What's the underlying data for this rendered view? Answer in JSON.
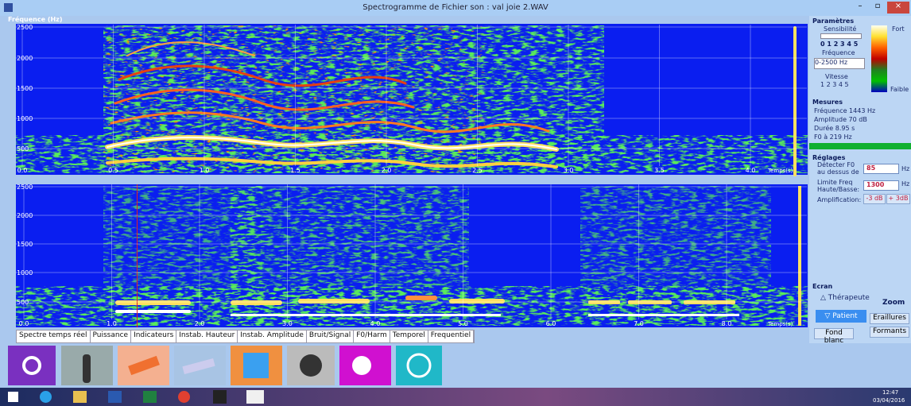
{
  "window": {
    "title": "Spectrogramme de Fichier son : val joie 2.WAV"
  },
  "top_spectrogram": {
    "y_label": "Fréquence (Hz)",
    "y_ticks": [
      "2500",
      "2000",
      "1500",
      "1000",
      "500"
    ],
    "x_ticks": [
      "0.0",
      "0.5",
      "1.0",
      "1.5",
      "2.0",
      "2.5",
      "3.0",
      "3.5",
      "4.0"
    ],
    "x_label": "Temps(s)"
  },
  "bottom_spectrogram": {
    "y_ticks": [
      "2500",
      "2000",
      "1500",
      "1000",
      "500"
    ],
    "x_ticks": [
      "0.0",
      "1.0",
      "2.0",
      "3.0",
      "4.0",
      "5.0",
      "6.0",
      "7.0",
      "8.0"
    ],
    "x_label": "Temps(s)"
  },
  "tabs": [
    "Spectre temps réel",
    "Puissance",
    "Indicateurs",
    "Instab. Hauteur",
    "Instab. Amplitude",
    "Bruit/Signal",
    "F0/Harm",
    "Temporel",
    "Frequentiel"
  ],
  "panel": {
    "parametres": {
      "title": "Paramètres",
      "sensibilite": "Sensibilité",
      "sensibilite_scale": "0 1 2 3 4 5",
      "frequence": "Fréquence",
      "frequence_select": "0-2500 Hz",
      "vitesse": "Vitesse",
      "vitesse_scale": "1 2 3 4 5",
      "fort": "Fort",
      "faible": "Faible"
    },
    "mesures": {
      "title": "Mesures",
      "lines": [
        "Fréquence 1443 Hz",
        "Amplitude  70 dB",
        "Durée  8.95 s",
        "F0 à  219 Hz"
      ]
    },
    "reglages": {
      "title": "Réglages",
      "detect_label": "Détecter F0 au dessus de",
      "detect_value": "85",
      "detect_unit": "Hz",
      "limit_label": "Limite Freq Haute/Basse:",
      "limit_value": "1300",
      "limit_unit": "Hz",
      "amp_label": "Amplification:",
      "amp_minus": "-3 dB",
      "amp_plus": "+ 3dB"
    },
    "ecran": {
      "title": "Ecran",
      "therapeute": "Thérapeute",
      "zoom": "Zoom",
      "patient": "Patient",
      "eraillures": "Eraillures",
      "fond_blanc": "Fond blanc",
      "formants": "Formants"
    }
  },
  "taskbar": {
    "time": "12:47",
    "date": "03/04/2016"
  }
}
